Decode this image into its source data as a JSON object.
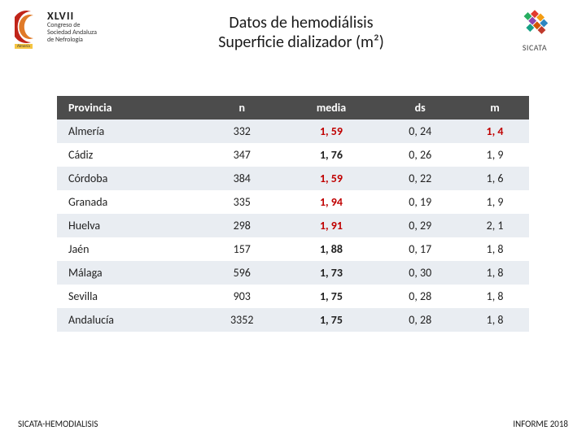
{
  "header": {
    "left_logo": {
      "roman": "XLVII",
      "line1": "Congreso de",
      "line2": "Sociedad Andaluza",
      "line3": "de Nefrología",
      "place": "Almería",
      "crescent_outer": "#c02418",
      "crescent_inner": "#e07a28"
    },
    "title_line1": "Datos de hemodiálisis",
    "title_line2": "Superficie dializador (m²)",
    "right_logo": {
      "label": "SICATA",
      "colors": [
        "#e23b2e",
        "#f39c12",
        "#2e86c1",
        "#27ae60",
        "#8e44ad",
        "#d35400",
        "#c0392b",
        "#16a085"
      ]
    }
  },
  "table": {
    "header_bg": "#4c4c4c",
    "header_fg": "#ffffff",
    "row_odd_bg": "#e9edf2",
    "row_even_bg": "#ffffff",
    "highlight_color": "#c00000",
    "font_size": 14,
    "columns": [
      "Provincia",
      "n",
      "media",
      "ds",
      "m"
    ],
    "col_align": [
      "left",
      "center",
      "center",
      "center",
      "center"
    ],
    "rows": [
      {
        "provincia": "Almería",
        "n": "332",
        "media": "1, 59",
        "ds": "0, 24",
        "m": "1, 4",
        "media_hl": true,
        "m_hl": true
      },
      {
        "provincia": "Cádiz",
        "n": "347",
        "media": "1, 76",
        "ds": "0, 26",
        "m": "1, 9",
        "media_hl": false,
        "m_hl": false
      },
      {
        "provincia": "Córdoba",
        "n": "384",
        "media": "1, 59",
        "ds": "0, 22",
        "m": "1, 6",
        "media_hl": true,
        "m_hl": false
      },
      {
        "provincia": "Granada",
        "n": "335",
        "media": "1, 94",
        "ds": "0, 19",
        "m": "1, 9",
        "media_hl": true,
        "m_hl": false
      },
      {
        "provincia": "Huelva",
        "n": "298",
        "media": "1, 91",
        "ds": "0, 29",
        "m": "2, 1",
        "media_hl": true,
        "m_hl": false
      },
      {
        "provincia": "Jaén",
        "n": "157",
        "media": "1, 88",
        "ds": "0, 17",
        "m": "1, 8",
        "media_hl": false,
        "m_hl": false
      },
      {
        "provincia": "Málaga",
        "n": "596",
        "media": "1, 73",
        "ds": "0, 30",
        "m": "1, 8",
        "media_hl": false,
        "m_hl": false
      },
      {
        "provincia": "Sevilla",
        "n": "903",
        "media": "1, 75",
        "ds": "0, 28",
        "m": "1, 8",
        "media_hl": false,
        "m_hl": false
      },
      {
        "provincia": "Andalucía",
        "n": "3352",
        "media": "1, 75",
        "ds": "0, 28",
        "m": "1, 8",
        "media_hl": false,
        "m_hl": false
      }
    ]
  },
  "footer": {
    "left": "SICATA-HEMODIALISIS",
    "right": "INFORME 2018"
  }
}
